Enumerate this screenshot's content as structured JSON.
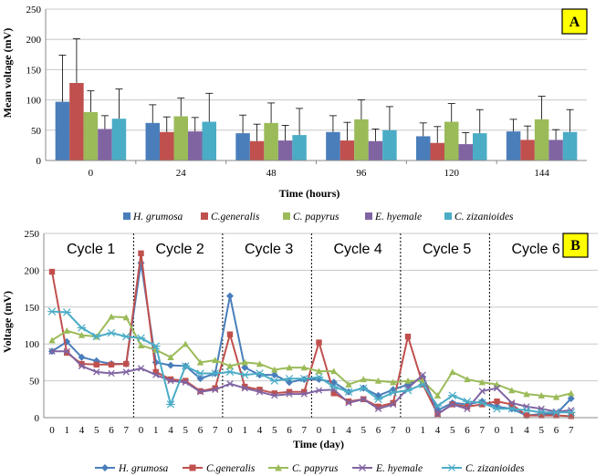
{
  "colors": {
    "H. grumosa": "#4a7ebb",
    "C.generalis": "#c0504d",
    "C. papyrus": "#9bbb59",
    "E. hyemale": "#8064a2",
    "C. zizanioides": "#4bacc6"
  },
  "series_names": [
    "H. grumosa",
    "C.generalis",
    "C. papyrus",
    "E. hyemale",
    "C. zizanioides"
  ],
  "chart_data": [
    {
      "type": "bar",
      "panel": "A",
      "title": "",
      "xlabel": "Time (hours)",
      "ylabel": "Mean voltage (mV)",
      "ylim": [
        0,
        250
      ],
      "yticks": [
        0,
        50,
        100,
        150,
        200,
        250
      ],
      "categories": [
        "0",
        "24",
        "48",
        "96",
        "120",
        "144"
      ],
      "legend_position": "bottom",
      "series": [
        {
          "name": "H. grumosa",
          "values": [
            97,
            62,
            45,
            47,
            40,
            48
          ],
          "err": [
            77,
            30,
            30,
            27,
            22,
            20
          ]
        },
        {
          "name": "C.generalis",
          "values": [
            128,
            47,
            32,
            33,
            29,
            34
          ],
          "err": [
            73,
            25,
            28,
            30,
            27,
            23
          ]
        },
        {
          "name": "C. papyrus",
          "values": [
            80,
            73,
            62,
            68,
            64,
            68
          ],
          "err": [
            35,
            30,
            33,
            32,
            30,
            38
          ]
        },
        {
          "name": "E. hyemale",
          "values": [
            52,
            48,
            33,
            32,
            27,
            34
          ],
          "err": [
            22,
            23,
            25,
            20,
            19,
            17
          ]
        },
        {
          "name": "C. zizanioides",
          "values": [
            69,
            64,
            42,
            50,
            45,
            47
          ],
          "err": [
            49,
            47,
            44,
            39,
            39,
            37
          ]
        }
      ]
    },
    {
      "type": "line",
      "panel": "B",
      "title": "",
      "xlabel": "Time (day)",
      "ylabel": "Voltage (mV)",
      "ylim": [
        0,
        250
      ],
      "yticks": [
        0,
        50,
        100,
        150,
        200,
        250
      ],
      "x_tick_labels": [
        "0",
        "1",
        "4",
        "5",
        "6",
        "7",
        "0",
        "1",
        "4",
        "5",
        "6",
        "7",
        "0",
        "1",
        "4",
        "5",
        "6",
        "7",
        "0",
        "1",
        "4",
        "5",
        "6",
        "7",
        "0",
        "1",
        "4",
        "5",
        "6",
        "7",
        "0",
        "1",
        "4",
        "5",
        "6",
        "7"
      ],
      "cycles": [
        "Cycle 1",
        "Cycle 2",
        "Cycle 3",
        "Cycle 4",
        "Cycle 5",
        "Cycle 6"
      ],
      "legend_position": "bottom",
      "series": [
        {
          "name": "H. grumosa",
          "values": [
            90,
            103,
            82,
            77,
            73,
            73,
            210,
            75,
            71,
            70,
            53,
            60,
            165,
            68,
            58,
            58,
            48,
            52,
            52,
            48,
            35,
            40,
            30,
            38,
            45,
            55,
            10,
            20,
            18,
            22,
            15,
            12,
            3,
            5,
            5,
            26
          ]
        },
        {
          "name": "C.generalis",
          "values": [
            198,
            88,
            73,
            72,
            72,
            73,
            223,
            62,
            52,
            50,
            36,
            40,
            113,
            42,
            38,
            33,
            35,
            35,
            102,
            33,
            22,
            25,
            15,
            20,
            110,
            45,
            5,
            18,
            15,
            18,
            22,
            18,
            3,
            3,
            3,
            2
          ]
        },
        {
          "name": "C. papyrus",
          "values": [
            105,
            118,
            112,
            110,
            137,
            136,
            98,
            92,
            82,
            100,
            75,
            78,
            70,
            75,
            73,
            65,
            68,
            68,
            63,
            63,
            45,
            52,
            50,
            48,
            50,
            50,
            30,
            62,
            52,
            48,
            45,
            37,
            32,
            30,
            28,
            33
          ]
        },
        {
          "name": "E. hyemale",
          "values": [
            90,
            90,
            70,
            62,
            60,
            62,
            67,
            58,
            50,
            48,
            35,
            38,
            46,
            40,
            35,
            30,
            32,
            32,
            37,
            38,
            20,
            25,
            12,
            18,
            40,
            58,
            5,
            18,
            12,
            36,
            40,
            20,
            15,
            12,
            8,
            10
          ]
        },
        {
          "name": "C. zizanioides",
          "values": [
            144,
            143,
            122,
            110,
            115,
            110,
            108,
            97,
            18,
            70,
            60,
            60,
            62,
            58,
            60,
            50,
            53,
            53,
            55,
            42,
            35,
            40,
            25,
            34,
            37,
            45,
            16,
            30,
            22,
            20,
            12,
            12,
            10,
            7,
            7,
            7
          ]
        }
      ]
    }
  ]
}
